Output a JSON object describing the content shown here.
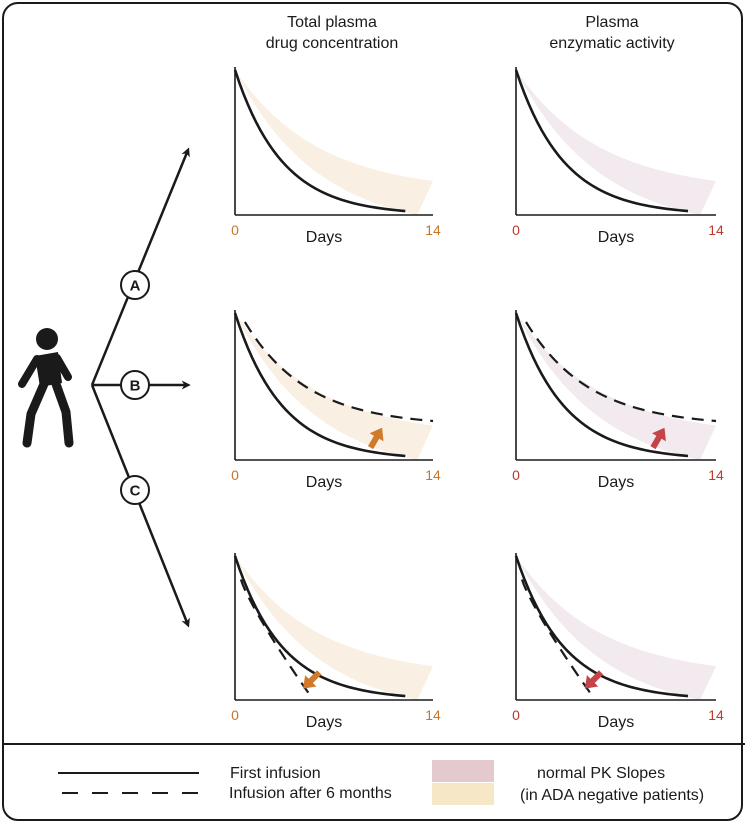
{
  "columns": {
    "left": {
      "line1": "Total plasma",
      "line2": "drug concentration"
    },
    "right": {
      "line1": "Plasma",
      "line2": "enzymatic activity"
    }
  },
  "branches": [
    {
      "label": "A"
    },
    {
      "label": "B"
    },
    {
      "label": "C"
    }
  ],
  "axis": {
    "xlabel": "Days",
    "xmin": "0",
    "xmax": "14"
  },
  "colors": {
    "concentration_band": "#f9efe2",
    "activity_band": "#f2eaef",
    "concentration_tick": "#c87528",
    "activity_tick": "#c0392b",
    "concentration_arrow": "#d27a2c",
    "activity_arrow": "#c4444a",
    "legend_pink": "#e4c9cd",
    "legend_yellow": "#f6e8c6",
    "ink": "#1a1a1a"
  },
  "legend": {
    "first_infusion": "First infusion",
    "infusion_6mo": "Infusion after 6 months",
    "normal_pk_line1": "normal PK Slopes",
    "normal_pk_line2": "(in ADA negative patients)"
  },
  "icons": {
    "person": "walking-person-icon",
    "arrow_up": "up-arrow-icon",
    "arrow_down": "down-arrow-icon"
  }
}
